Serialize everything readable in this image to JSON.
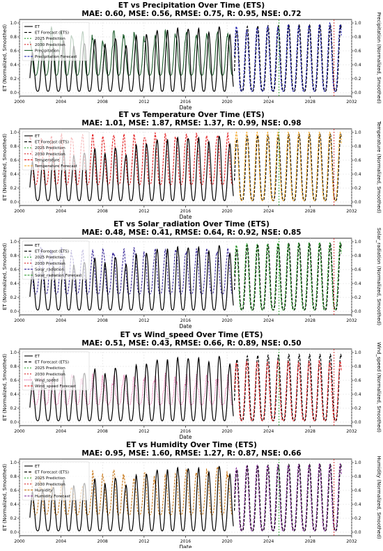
{
  "chart_data": [
    {
      "type": "line",
      "title": "ET vs Precipitation Over Time (ETS)",
      "metrics": "MAE: 0.60, MSE: 0.56, RMSE: 0.75, R: 0.95, NSE: 0.72",
      "xlabel": "Date",
      "ylabel_left": "ET (Normalized, Smoothed)",
      "ylabel_right": "Precipitation (Normalized, Smoothed)",
      "xticks": [
        "2000",
        "2004",
        "2008",
        "2012",
        "2016",
        "2020",
        "2024",
        "2028",
        "2032"
      ],
      "yticks": [
        "0.0",
        "0.2",
        "0.4",
        "0.6",
        "0.8",
        "1.0"
      ],
      "xlim": [
        2000,
        2032
      ],
      "ylim": [
        0,
        1
      ],
      "legend": [
        "ET",
        "ET Forecast (ETS)",
        "2025 Prediction",
        "2030 Prediction",
        "Precipitation",
        "Precipitation Forecast"
      ],
      "colors": {
        "et": "#000000",
        "driver": "#1f5e2e",
        "forecast": "#1515a8",
        "pred2025": "#2ca02c",
        "pred2030": "#d62728"
      },
      "prediction_lines": [
        2025,
        2030.3
      ],
      "series": [
        {
          "name": "ET",
          "x_range": [
            2001,
            2020.6
          ],
          "peaks": [
            0.56,
            0.6,
            0.65,
            0.73,
            0.66,
            0.72,
            0.75,
            0.68,
            0.79,
            0.67,
            0.8,
            0.84,
            0.9,
            0.88,
            0.92,
            0.93,
            0.91,
            0.85,
            0.96,
            0.83
          ]
        },
        {
          "name": "ET Forecast (ETS)",
          "x_range": [
            2020.7,
            2031
          ],
          "peaks": [
            0.9,
            0.95,
            0.96,
            0.96,
            0.96,
            0.97,
            0.97,
            0.97,
            0.97,
            0.97,
            0.97
          ]
        },
        {
          "name": "Precipitation",
          "x_range": [
            2001,
            2020.6
          ],
          "peaks": [
            0.71,
            0.78,
            0.92,
            0.84,
            0.82,
            0.87,
            0.75,
            0.72,
            0.9,
            0.79,
            0.85,
            0.76,
            0.8,
            0.87,
            0.83,
            0.86,
            0.8,
            0.84,
            0.88,
            0.82
          ]
        },
        {
          "name": "Precipitation Forecast",
          "x_range": [
            2020.7,
            2031
          ],
          "peaks": [
            0.95,
            0.9,
            0.93,
            0.95,
            0.94,
            0.98,
            0.96,
            0.97,
            0.98,
            1.0,
            0.98
          ]
        }
      ]
    },
    {
      "type": "line",
      "title": "ET vs Temperature Over Time (ETS)",
      "metrics": "MAE: 1.01, MSE: 1.87, RMSE: 1.37, R: 0.99, NSE: 0.98",
      "xlabel": "Date",
      "ylabel_left": "ET (Normalized, Smoothed)",
      "ylabel_right": "Temperature (Normalized, Smoothed)",
      "xticks": [
        "2000",
        "2004",
        "2008",
        "2012",
        "2016",
        "2020",
        "2024",
        "2028",
        "2032"
      ],
      "yticks": [
        "0.0",
        "0.2",
        "0.4",
        "0.6",
        "0.8",
        "1.0"
      ],
      "xlim": [
        2000,
        2032
      ],
      "ylim": [
        0,
        1
      ],
      "legend": [
        "ET",
        "ET Forecast (ETS)",
        "2025 Prediction",
        "2030 Prediction",
        "Temperature",
        "Temperature Forecast"
      ],
      "colors": {
        "et": "#000000",
        "driver": "#e4191c",
        "forecast": "#f5a31a",
        "pred2025": "#2ca02c",
        "pred2030": "#d62728"
      },
      "prediction_lines": [
        2025,
        2030.3
      ],
      "series": [
        {
          "name": "ET",
          "x_range": [
            2001,
            2020.6
          ],
          "peaks": [
            0.56,
            0.6,
            0.65,
            0.73,
            0.66,
            0.72,
            0.75,
            0.68,
            0.79,
            0.67,
            0.8,
            0.84,
            0.9,
            0.88,
            0.92,
            0.93,
            0.91,
            0.85,
            0.96,
            0.83
          ]
        },
        {
          "name": "ET Forecast (ETS)",
          "x_range": [
            2020.7,
            2031
          ],
          "peaks": [
            0.9,
            0.95,
            0.96,
            0.96,
            0.96,
            0.97,
            0.97,
            0.97,
            0.97,
            0.97,
            0.97
          ]
        },
        {
          "name": "Temperature",
          "x_range": [
            2001,
            2020.6
          ],
          "peaks": [
            0.92,
            0.94,
            0.93,
            0.95,
            0.94,
            0.96,
            0.95,
            0.94,
            0.97,
            0.95,
            0.96,
            0.95,
            0.97,
            0.96,
            0.95,
            0.97,
            0.96,
            0.95,
            0.97,
            0.96
          ]
        },
        {
          "name": "Temperature Forecast",
          "x_range": [
            2020.7,
            2031
          ],
          "peaks": [
            1.0,
            1.0,
            1.0,
            1.0,
            1.0,
            1.0,
            1.0,
            1.0,
            1.0,
            1.0,
            1.0
          ]
        }
      ]
    },
    {
      "type": "line",
      "title": "ET vs Solar_radiation Over Time (ETS)",
      "metrics": "MAE: 0.48, MSE: 0.41, RMSE: 0.64, R: 0.92, NSE: 0.85",
      "xlabel": "Date",
      "ylabel_left": "ET (Normalized, Smoothed)",
      "ylabel_right": "Solar_radiation (Normalized, Smoothed)",
      "xticks": [
        "2000",
        "2004",
        "2008",
        "2012",
        "2016",
        "2020",
        "2024",
        "2028",
        "2032"
      ],
      "yticks": [
        "0.0",
        "0.2",
        "0.4",
        "0.6",
        "0.8",
        "1.0"
      ],
      "xlim": [
        2000,
        2032
      ],
      "ylim": [
        0,
        1
      ],
      "legend": [
        "ET",
        "ET Forecast (ETS)",
        "2025 Prediction",
        "2030 Prediction",
        "Solar_radiation",
        "Solar_radiation Forecast"
      ],
      "colors": {
        "et": "#000000",
        "driver": "#3b2a9a",
        "forecast": "#1a8f1a",
        "pred2025": "#2ca02c",
        "pred2030": "#d62728"
      },
      "prediction_lines": [
        2025,
        2030.3
      ],
      "series": [
        {
          "name": "ET",
          "x_range": [
            2001,
            2020.6
          ],
          "peaks": [
            0.56,
            0.6,
            0.65,
            0.73,
            0.66,
            0.72,
            0.75,
            0.68,
            0.79,
            0.67,
            0.8,
            0.84,
            0.9,
            0.88,
            0.92,
            0.93,
            0.91,
            0.85,
            0.96,
            0.83
          ]
        },
        {
          "name": "ET Forecast (ETS)",
          "x_range": [
            2020.7,
            2031
          ],
          "peaks": [
            0.9,
            0.95,
            0.96,
            0.96,
            0.96,
            0.97,
            0.97,
            0.97,
            0.97,
            0.97,
            0.97
          ]
        },
        {
          "name": "Solar_radiation",
          "x_range": [
            2001,
            2020.6
          ],
          "peaks": [
            0.8,
            0.95,
            0.85,
            0.9,
            0.82,
            0.88,
            0.85,
            0.9,
            0.84,
            0.87,
            0.9,
            0.83,
            0.88,
            0.86,
            0.9,
            0.85,
            0.87,
            0.9,
            0.86,
            0.88
          ]
        },
        {
          "name": "Solar_radiation Forecast",
          "x_range": [
            2020.7,
            2031
          ],
          "peaks": [
            0.95,
            0.97,
            0.96,
            0.97,
            0.98,
            0.97,
            0.98,
            0.98,
            0.99,
            0.98,
            0.99
          ]
        }
      ]
    },
    {
      "type": "line",
      "title": "ET vs Wind_speed Over Time (ETS)",
      "metrics": "MAE: 0.51, MSE: 0.43, RMSE: 0.66, R: 0.89, NSE: 0.50",
      "xlabel": "Date",
      "ylabel_left": "ET (Normalized, Smoothed)",
      "ylabel_right": "Wind_speed (Normalized, Smoothed)",
      "xticks": [
        "2000",
        "2004",
        "2008",
        "2012",
        "2016",
        "2020",
        "2024",
        "2028",
        "2032"
      ],
      "yticks": [
        "0.0",
        "0.2",
        "0.4",
        "0.6",
        "0.8",
        "1.0"
      ],
      "xlim": [
        2000,
        2032
      ],
      "ylim": [
        0,
        1
      ],
      "legend": [
        "ET",
        "ET Forecast (ETS)",
        "2025 Prediction",
        "2030 Prediction",
        "Wind_speed",
        "Wind_speed Forecast"
      ],
      "colors": {
        "et": "#000000",
        "driver": "#e0559a",
        "forecast": "#e4191c",
        "pred2025": "#2ca02c",
        "pred2030": "#d62728"
      },
      "prediction_lines": [
        2025,
        2030.3
      ],
      "series": [
        {
          "name": "ET",
          "x_range": [
            2001,
            2020.6
          ],
          "peaks": [
            0.56,
            0.6,
            0.65,
            0.73,
            0.66,
            0.72,
            0.75,
            0.68,
            0.79,
            0.67,
            0.8,
            0.84,
            0.9,
            0.88,
            0.92,
            0.93,
            0.91,
            0.85,
            0.96,
            0.83
          ]
        },
        {
          "name": "ET Forecast (ETS)",
          "x_range": [
            2020.7,
            2031
          ],
          "peaks": [
            0.9,
            0.95,
            0.96,
            0.96,
            0.96,
            0.97,
            0.97,
            0.97,
            0.97,
            0.97,
            0.97
          ]
        },
        {
          "name": "Wind_speed",
          "x_range": [
            2001,
            2020.6
          ],
          "peaks": [
            0.6,
            0.65,
            0.58,
            0.62,
            0.7,
            0.6,
            0.64,
            0.58,
            0.66,
            0.62,
            0.6,
            0.68,
            0.62,
            0.64,
            0.6,
            0.66,
            0.62,
            0.65,
            0.6,
            0.63
          ]
        },
        {
          "name": "Wind_speed Forecast",
          "x_range": [
            2020.7,
            2031
          ],
          "peaks": [
            0.85,
            0.87,
            0.86,
            0.86,
            0.88,
            0.87,
            0.86,
            0.87,
            0.88,
            0.86,
            0.87
          ]
        }
      ]
    },
    {
      "type": "line",
      "title": "ET vs Humidity Over Time (ETS)",
      "metrics": "MAE: 0.95, MSE: 1.60, RMSE: 1.27, R: 0.87, NSE: 0.66",
      "xlabel": "Date",
      "ylabel_left": "ET (Normalized, Smoothed)",
      "ylabel_right": "Humidity (Normalized, Smoothed)",
      "xticks": [
        "2000",
        "2004",
        "2008",
        "2012",
        "2016",
        "2020",
        "2024",
        "2028",
        "2032"
      ],
      "yticks": [
        "0.0",
        "0.2",
        "0.4",
        "0.6",
        "0.8",
        "1.0"
      ],
      "xlim": [
        2000,
        2032
      ],
      "ylim": [
        0,
        1
      ],
      "legend": [
        "ET",
        "ET Forecast (ETS)",
        "2025 Prediction",
        "2030 Prediction",
        "Humidity",
        "Humidity Forecast"
      ],
      "colors": {
        "et": "#000000",
        "driver": "#c8781a",
        "forecast": "#7a1f8f",
        "pred2025": "#2ca02c",
        "pred2030": "#d62728"
      },
      "prediction_lines": [
        2025,
        2030.3
      ],
      "series": [
        {
          "name": "ET",
          "x_range": [
            2001,
            2020.6
          ],
          "peaks": [
            0.56,
            0.6,
            0.65,
            0.73,
            0.66,
            0.72,
            0.75,
            0.68,
            0.79,
            0.67,
            0.8,
            0.84,
            0.9,
            0.88,
            0.92,
            0.93,
            0.91,
            0.85,
            0.96,
            0.83
          ]
        },
        {
          "name": "ET Forecast (ETS)",
          "x_range": [
            2020.7,
            2031
          ],
          "peaks": [
            0.9,
            0.95,
            0.96,
            0.96,
            0.96,
            0.97,
            0.97,
            0.97,
            0.97,
            0.97,
            0.97
          ]
        },
        {
          "name": "Humidity",
          "x_range": [
            2001,
            2020.6
          ],
          "peaks": [
            0.85,
            0.65,
            0.65,
            0.65,
            0.65,
            0.65,
            0.85,
            0.8,
            0.9,
            0.78,
            0.75,
            0.88,
            0.72,
            0.8,
            0.85,
            0.9,
            0.82,
            0.9,
            0.95,
            0.8
          ]
        },
        {
          "name": "Humidity Forecast",
          "x_range": [
            2020.7,
            2031
          ],
          "peaks": [
            0.92,
            0.95,
            0.96,
            0.96,
            0.97,
            0.96,
            0.97,
            0.97,
            0.98,
            0.97,
            0.98
          ]
        }
      ]
    }
  ]
}
